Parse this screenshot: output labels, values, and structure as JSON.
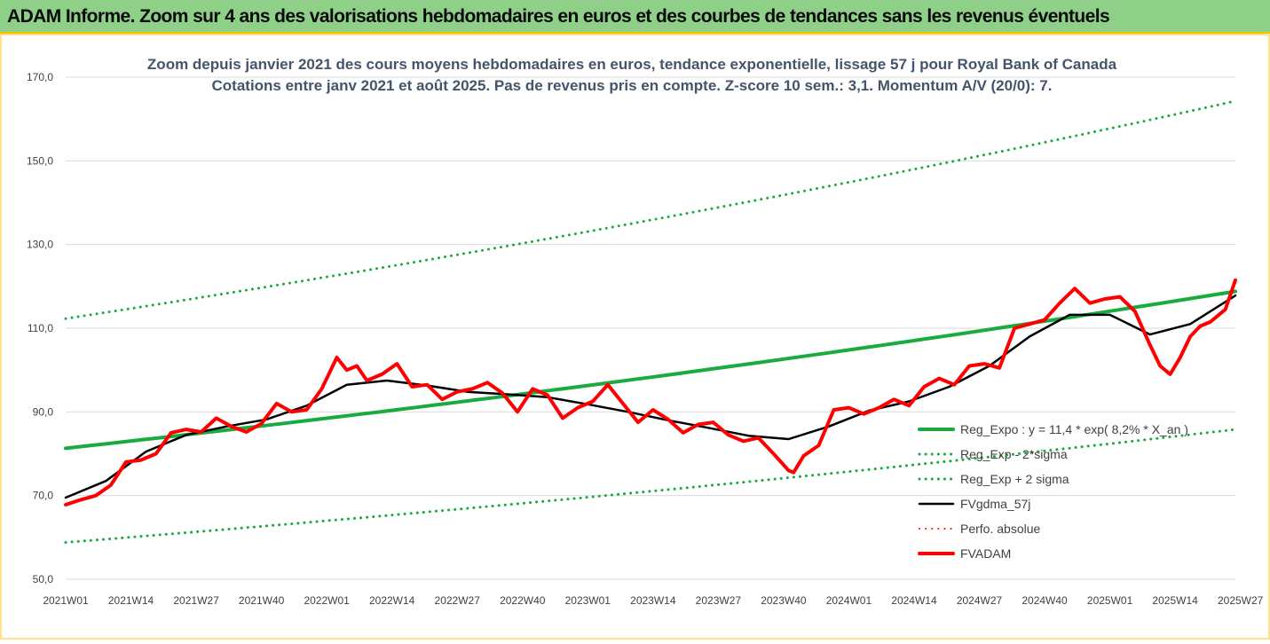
{
  "header": {
    "title": "ADAM Informe. Zoom sur 4 ans des valorisations hebdomadaires en euros et des courbes de tendances sans les revenus éventuels"
  },
  "colors": {
    "header_bg": "#8fd089",
    "header_border": "#ffc000",
    "green": "#1aab40",
    "red": "#ff0000",
    "black": "#000000",
    "gridline": "#d9d9d9"
  },
  "chart_data": {
    "type": "line",
    "title": [
      "Zoom depuis janvier 2021 des cours moyens hebdomadaires en euros, tendance exponentielle, lissage 57 j pour Royal Bank of Canada",
      "Cotations entre janv 2021 et août 2025.  Pas de revenus pris en compte. Z-score 10 sem.: 3,1. Momentum A/V (20/0): 7."
    ],
    "ylim": [
      50,
      170
    ],
    "yticks": [
      "50,0",
      "70,0",
      "90,0",
      "110,0",
      "130,0",
      "150,0",
      "170,0"
    ],
    "ytick_values": [
      50,
      70,
      90,
      110,
      130,
      150,
      170
    ],
    "xlim": [
      0,
      233
    ],
    "xtick_labels": [
      "2021W01",
      "2021W14",
      "2021W27",
      "2021W40",
      "2022W01",
      "2022W14",
      "2022W27",
      "2022W40",
      "2023W01",
      "2023W14",
      "2023W27",
      "2023W40",
      "2024W01",
      "2024W14",
      "2024W27",
      "2024W40",
      "2025W01",
      "2025W14",
      "2025W27"
    ],
    "xtick_index": [
      0,
      13,
      26,
      39,
      52,
      65,
      78,
      91,
      104,
      117,
      130,
      143,
      156,
      169,
      182,
      195,
      208,
      221,
      234
    ],
    "grid": "horizontal",
    "legend_position": "bottom-right",
    "legend": [
      {
        "label": "Reg_Expo : y = 11,4 * exp( 8,2% * X_an )",
        "style": "solid",
        "color": "#1aab40",
        "width": 4
      },
      {
        "label": "Reg_Exp - 2*sigma",
        "style": "dotted",
        "color": "#1aab40",
        "width": 3
      },
      {
        "label": "Reg_Exp + 2 sigma",
        "style": "dotted",
        "color": "#1aab40",
        "width": 3
      },
      {
        "label": "FVgdma_57j",
        "style": "solid",
        "color": "#000000",
        "width": 2.5
      },
      {
        "label": "Perfo. absolue",
        "style": "dotted",
        "color": "#ff0000",
        "width": 2
      },
      {
        "label": "FVADAM",
        "style": "solid",
        "color": "#ff0000",
        "width": 4
      }
    ],
    "series": [
      {
        "name": "Reg_Expo : y = 11,4 * exp( 8,2% * X_an )",
        "x": [
          0,
          233
        ],
        "y": [
          81.3,
          118.8
        ],
        "interp": "exponential"
      },
      {
        "name": "Reg_Exp - 2*sigma",
        "x": [
          0,
          233
        ],
        "y": [
          58.8,
          85.8
        ],
        "interp": "exponential"
      },
      {
        "name": "Reg_Exp + 2 sigma",
        "x": [
          0,
          233
        ],
        "y": [
          112.3,
          164.3
        ],
        "interp": "exponential"
      },
      {
        "name": "FVgdma_57j",
        "x": [
          0,
          8,
          16,
          24,
          32,
          40,
          48,
          56,
          64,
          72,
          80,
          88,
          96,
          104,
          112,
          120,
          128,
          136,
          144,
          152,
          160,
          168,
          176,
          184,
          192,
          200,
          208,
          216,
          224,
          233
        ],
        "y": [
          69.5,
          73.5,
          80.5,
          84.5,
          86.5,
          88.2,
          91.5,
          96.5,
          97.5,
          96.3,
          94.8,
          94.2,
          93.5,
          91.8,
          90.0,
          88.0,
          86.2,
          84.3,
          83.5,
          86.5,
          90.3,
          92.5,
          96.0,
          101.0,
          108.0,
          113.2,
          113.2,
          108.5,
          111.0,
          117.8
        ]
      },
      {
        "name": "FVADAM",
        "x": [
          0,
          3,
          6,
          9,
          12,
          15,
          18,
          21,
          24,
          27,
          30,
          33,
          36,
          39,
          42,
          45,
          48,
          51,
          54,
          56,
          58,
          60,
          63,
          66,
          69,
          72,
          75,
          78,
          81,
          84,
          87,
          90,
          93,
          96,
          99,
          102,
          105,
          108,
          111,
          114,
          117,
          120,
          123,
          126,
          129,
          132,
          135,
          138,
          141,
          144,
          145,
          147,
          150,
          153,
          156,
          159,
          162,
          165,
          168,
          171,
          174,
          177,
          180,
          183,
          186,
          189,
          192,
          195,
          198,
          201,
          204,
          207,
          210,
          213,
          216,
          218,
          220,
          222,
          224,
          226,
          228,
          231,
          233
        ],
        "y": [
          67.8,
          69.0,
          70.0,
          72.5,
          78.0,
          78.5,
          80.0,
          85.0,
          85.8,
          85.2,
          88.5,
          86.5,
          85.2,
          87.2,
          92.0,
          90.0,
          90.5,
          95.5,
          103.0,
          100.0,
          101.0,
          97.5,
          99.0,
          101.5,
          96.0,
          96.5,
          93.0,
          94.8,
          95.5,
          97.0,
          94.5,
          90.0,
          95.5,
          94.0,
          88.5,
          91.0,
          92.5,
          96.5,
          92.0,
          87.5,
          90.5,
          88.2,
          85.0,
          87.0,
          87.5,
          84.5,
          83.0,
          83.8,
          80.0,
          76.0,
          75.5,
          79.5,
          82.0,
          90.5,
          91.0,
          89.5,
          91.0,
          93.0,
          91.5,
          96.0,
          98.0,
          96.5,
          101.0,
          101.5,
          100.5,
          110.0,
          111.0,
          112.0,
          116.0,
          119.5,
          116.0,
          117.0,
          117.5,
          114.0,
          106.0,
          101.0,
          99.0,
          103.0,
          108.0,
          110.5,
          111.5,
          114.5,
          121.5
        ]
      }
    ]
  }
}
